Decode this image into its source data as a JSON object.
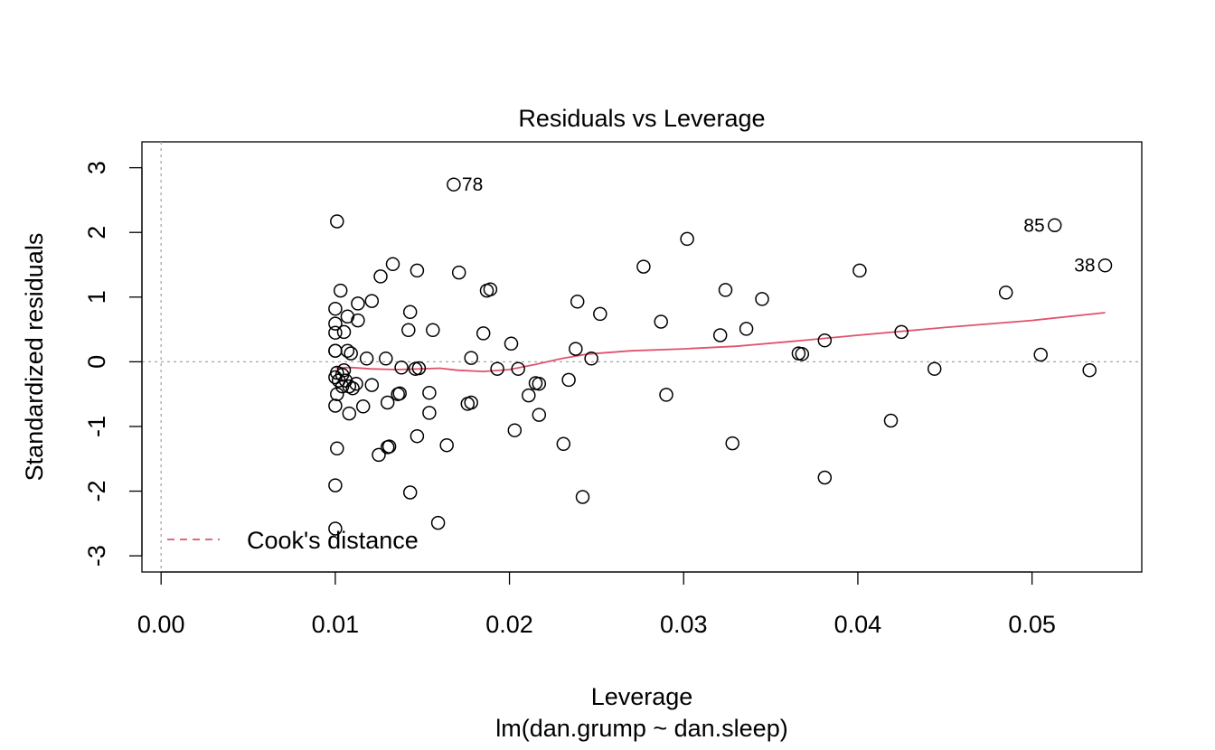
{
  "chart_data": {
    "type": "scatter",
    "title": "Residuals vs Leverage",
    "xlabel": "Leverage",
    "sublabel": "lm(dan.grump ~ dan.sleep)",
    "ylabel": "Standardized residuals",
    "xlim": [
      -0.0011,
      0.0563
    ],
    "ylim": [
      -3.25,
      3.4
    ],
    "xticks": [
      "0.00",
      "0.01",
      "0.02",
      "0.03",
      "0.04",
      "0.05"
    ],
    "xtick_values": [
      0,
      0.01,
      0.02,
      0.03,
      0.04,
      0.05
    ],
    "yticks": [
      "-3",
      "-2",
      "-1",
      "0",
      "1",
      "2",
      "3"
    ],
    "ytick_values": [
      -3,
      -2,
      -1,
      0,
      1,
      2,
      3
    ],
    "reference_lines": {
      "h": 0,
      "v": 0
    },
    "legend": {
      "position": "bottom-left",
      "label": "Cook's distance",
      "color": "#df536b",
      "style": "dashed"
    },
    "smooth_color": "#df536b",
    "points": [
      [
        0.0168,
        2.74
      ],
      [
        0.0101,
        2.17
      ],
      [
        0.0513,
        2.11
      ],
      [
        0.0542,
        1.49
      ],
      [
        0.0302,
        1.9
      ],
      [
        0.0277,
        1.47
      ],
      [
        0.0133,
        1.51
      ],
      [
        0.0147,
        1.41
      ],
      [
        0.0126,
        1.32
      ],
      [
        0.0171,
        1.38
      ],
      [
        0.0401,
        1.41
      ],
      [
        0.0189,
        1.12
      ],
      [
        0.0187,
        1.1
      ],
      [
        0.0103,
        1.1
      ],
      [
        0.0324,
        1.11
      ],
      [
        0.0485,
        1.07
      ],
      [
        0.0345,
        0.97
      ],
      [
        0.0121,
        0.94
      ],
      [
        0.0239,
        0.93
      ],
      [
        0.0113,
        0.9
      ],
      [
        0.01,
        0.82
      ],
      [
        0.0143,
        0.77
      ],
      [
        0.0252,
        0.74
      ],
      [
        0.0107,
        0.7
      ],
      [
        0.0113,
        0.64
      ],
      [
        0.0287,
        0.62
      ],
      [
        0.01,
        0.59
      ],
      [
        0.0156,
        0.49
      ],
      [
        0.0142,
        0.49
      ],
      [
        0.0336,
        0.51
      ],
      [
        0.0105,
        0.46
      ],
      [
        0.01,
        0.45
      ],
      [
        0.0185,
        0.44
      ],
      [
        0.0425,
        0.46
      ],
      [
        0.0321,
        0.41
      ],
      [
        0.0381,
        0.33
      ],
      [
        0.0201,
        0.28
      ],
      [
        0.0238,
        0.2
      ],
      [
        0.01,
        0.17
      ],
      [
        0.0107,
        0.17
      ],
      [
        0.01,
        0.17
      ],
      [
        0.0109,
        0.13
      ],
      [
        0.0366,
        0.13
      ],
      [
        0.0368,
        0.12
      ],
      [
        0.0505,
        0.11
      ],
      [
        0.0118,
        0.05
      ],
      [
        0.0129,
        0.05
      ],
      [
        0.0178,
        0.06
      ],
      [
        0.0247,
        0.05
      ],
      [
        0.0138,
        -0.09
      ],
      [
        0.0146,
        -0.11
      ],
      [
        0.0148,
        -0.1
      ],
      [
        0.0193,
        -0.11
      ],
      [
        0.0205,
        -0.11
      ],
      [
        0.0444,
        -0.11
      ],
      [
        0.0533,
        -0.13
      ],
      [
        0.0105,
        -0.13
      ],
      [
        0.0101,
        -0.17
      ],
      [
        0.0104,
        -0.2
      ],
      [
        0.01,
        -0.24
      ],
      [
        0.0102,
        -0.29
      ],
      [
        0.0106,
        -0.29
      ],
      [
        0.0112,
        -0.34
      ],
      [
        0.0108,
        -0.38
      ],
      [
        0.0104,
        -0.38
      ],
      [
        0.011,
        -0.41
      ],
      [
        0.0121,
        -0.36
      ],
      [
        0.0215,
        -0.33
      ],
      [
        0.0217,
        -0.34
      ],
      [
        0.0234,
        -0.28
      ],
      [
        0.0101,
        -0.5
      ],
      [
        0.0136,
        -0.5
      ],
      [
        0.0137,
        -0.49
      ],
      [
        0.0154,
        -0.48
      ],
      [
        0.0211,
        -0.52
      ],
      [
        0.029,
        -0.51
      ],
      [
        0.01,
        -0.68
      ],
      [
        0.0116,
        -0.69
      ],
      [
        0.013,
        -0.63
      ],
      [
        0.0176,
        -0.65
      ],
      [
        0.0178,
        -0.63
      ],
      [
        0.0108,
        -0.8
      ],
      [
        0.0154,
        -0.79
      ],
      [
        0.0217,
        -0.82
      ],
      [
        0.0419,
        -0.91
      ],
      [
        0.0203,
        -1.06
      ],
      [
        0.0147,
        -1.15
      ],
      [
        0.0164,
        -1.29
      ],
      [
        0.0231,
        -1.27
      ],
      [
        0.0328,
        -1.26
      ],
      [
        0.013,
        -1.32
      ],
      [
        0.0131,
        -1.31
      ],
      [
        0.0101,
        -1.34
      ],
      [
        0.0125,
        -1.44
      ],
      [
        0.0381,
        -1.79
      ],
      [
        0.01,
        -1.91
      ],
      [
        0.0143,
        -2.02
      ],
      [
        0.0242,
        -2.09
      ],
      [
        0.0159,
        -2.49
      ],
      [
        0.01,
        -2.58
      ]
    ],
    "point_labels": [
      {
        "x": 0.0168,
        "y": 2.74,
        "text": "78",
        "side": "right"
      },
      {
        "x": 0.0513,
        "y": 2.11,
        "text": "85",
        "side": "left"
      },
      {
        "x": 0.0542,
        "y": 1.49,
        "text": "38",
        "side": "left"
      }
    ],
    "smooth_line": [
      [
        0.01,
        -0.09
      ],
      [
        0.011,
        -0.09
      ],
      [
        0.012,
        -0.11
      ],
      [
        0.0135,
        -0.12
      ],
      [
        0.015,
        -0.11
      ],
      [
        0.016,
        -0.1
      ],
      [
        0.017,
        -0.13
      ],
      [
        0.0185,
        -0.15
      ],
      [
        0.02,
        -0.12
      ],
      [
        0.0215,
        -0.04
      ],
      [
        0.023,
        0.05
      ],
      [
        0.0245,
        0.12
      ],
      [
        0.027,
        0.17
      ],
      [
        0.03,
        0.2
      ],
      [
        0.033,
        0.24
      ],
      [
        0.036,
        0.31
      ],
      [
        0.04,
        0.41
      ],
      [
        0.045,
        0.53
      ],
      [
        0.05,
        0.64
      ],
      [
        0.0542,
        0.76
      ]
    ]
  }
}
